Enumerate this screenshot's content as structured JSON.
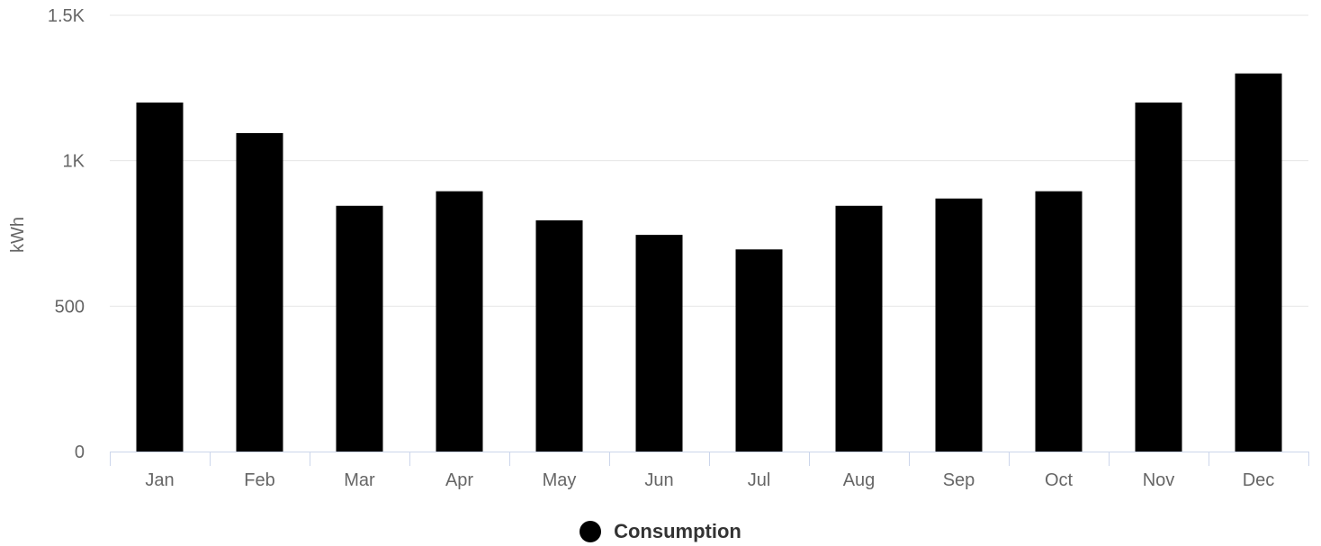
{
  "chart_data": {
    "type": "bar",
    "categories": [
      "Jan",
      "Feb",
      "Mar",
      "Apr",
      "May",
      "Jun",
      "Jul",
      "Aug",
      "Sep",
      "Oct",
      "Nov",
      "Dec"
    ],
    "series": [
      {
        "name": "Consumption",
        "values": [
          1200,
          1095,
          845,
          895,
          795,
          745,
          695,
          845,
          870,
          895,
          1200,
          1300
        ]
      }
    ],
    "ylabel": "kWh",
    "xlabel": "",
    "ylim": [
      0,
      1500
    ],
    "yticks": [
      0,
      500,
      1000,
      1500
    ],
    "ytick_labels": [
      "0",
      "500",
      "1K",
      "1.5K"
    ],
    "grid": true,
    "legend_position": "bottom-center",
    "colors": {
      "bar": "#000000",
      "grid": "#e6e6e6",
      "axis": "#ccd6eb",
      "text": "#666666"
    }
  }
}
